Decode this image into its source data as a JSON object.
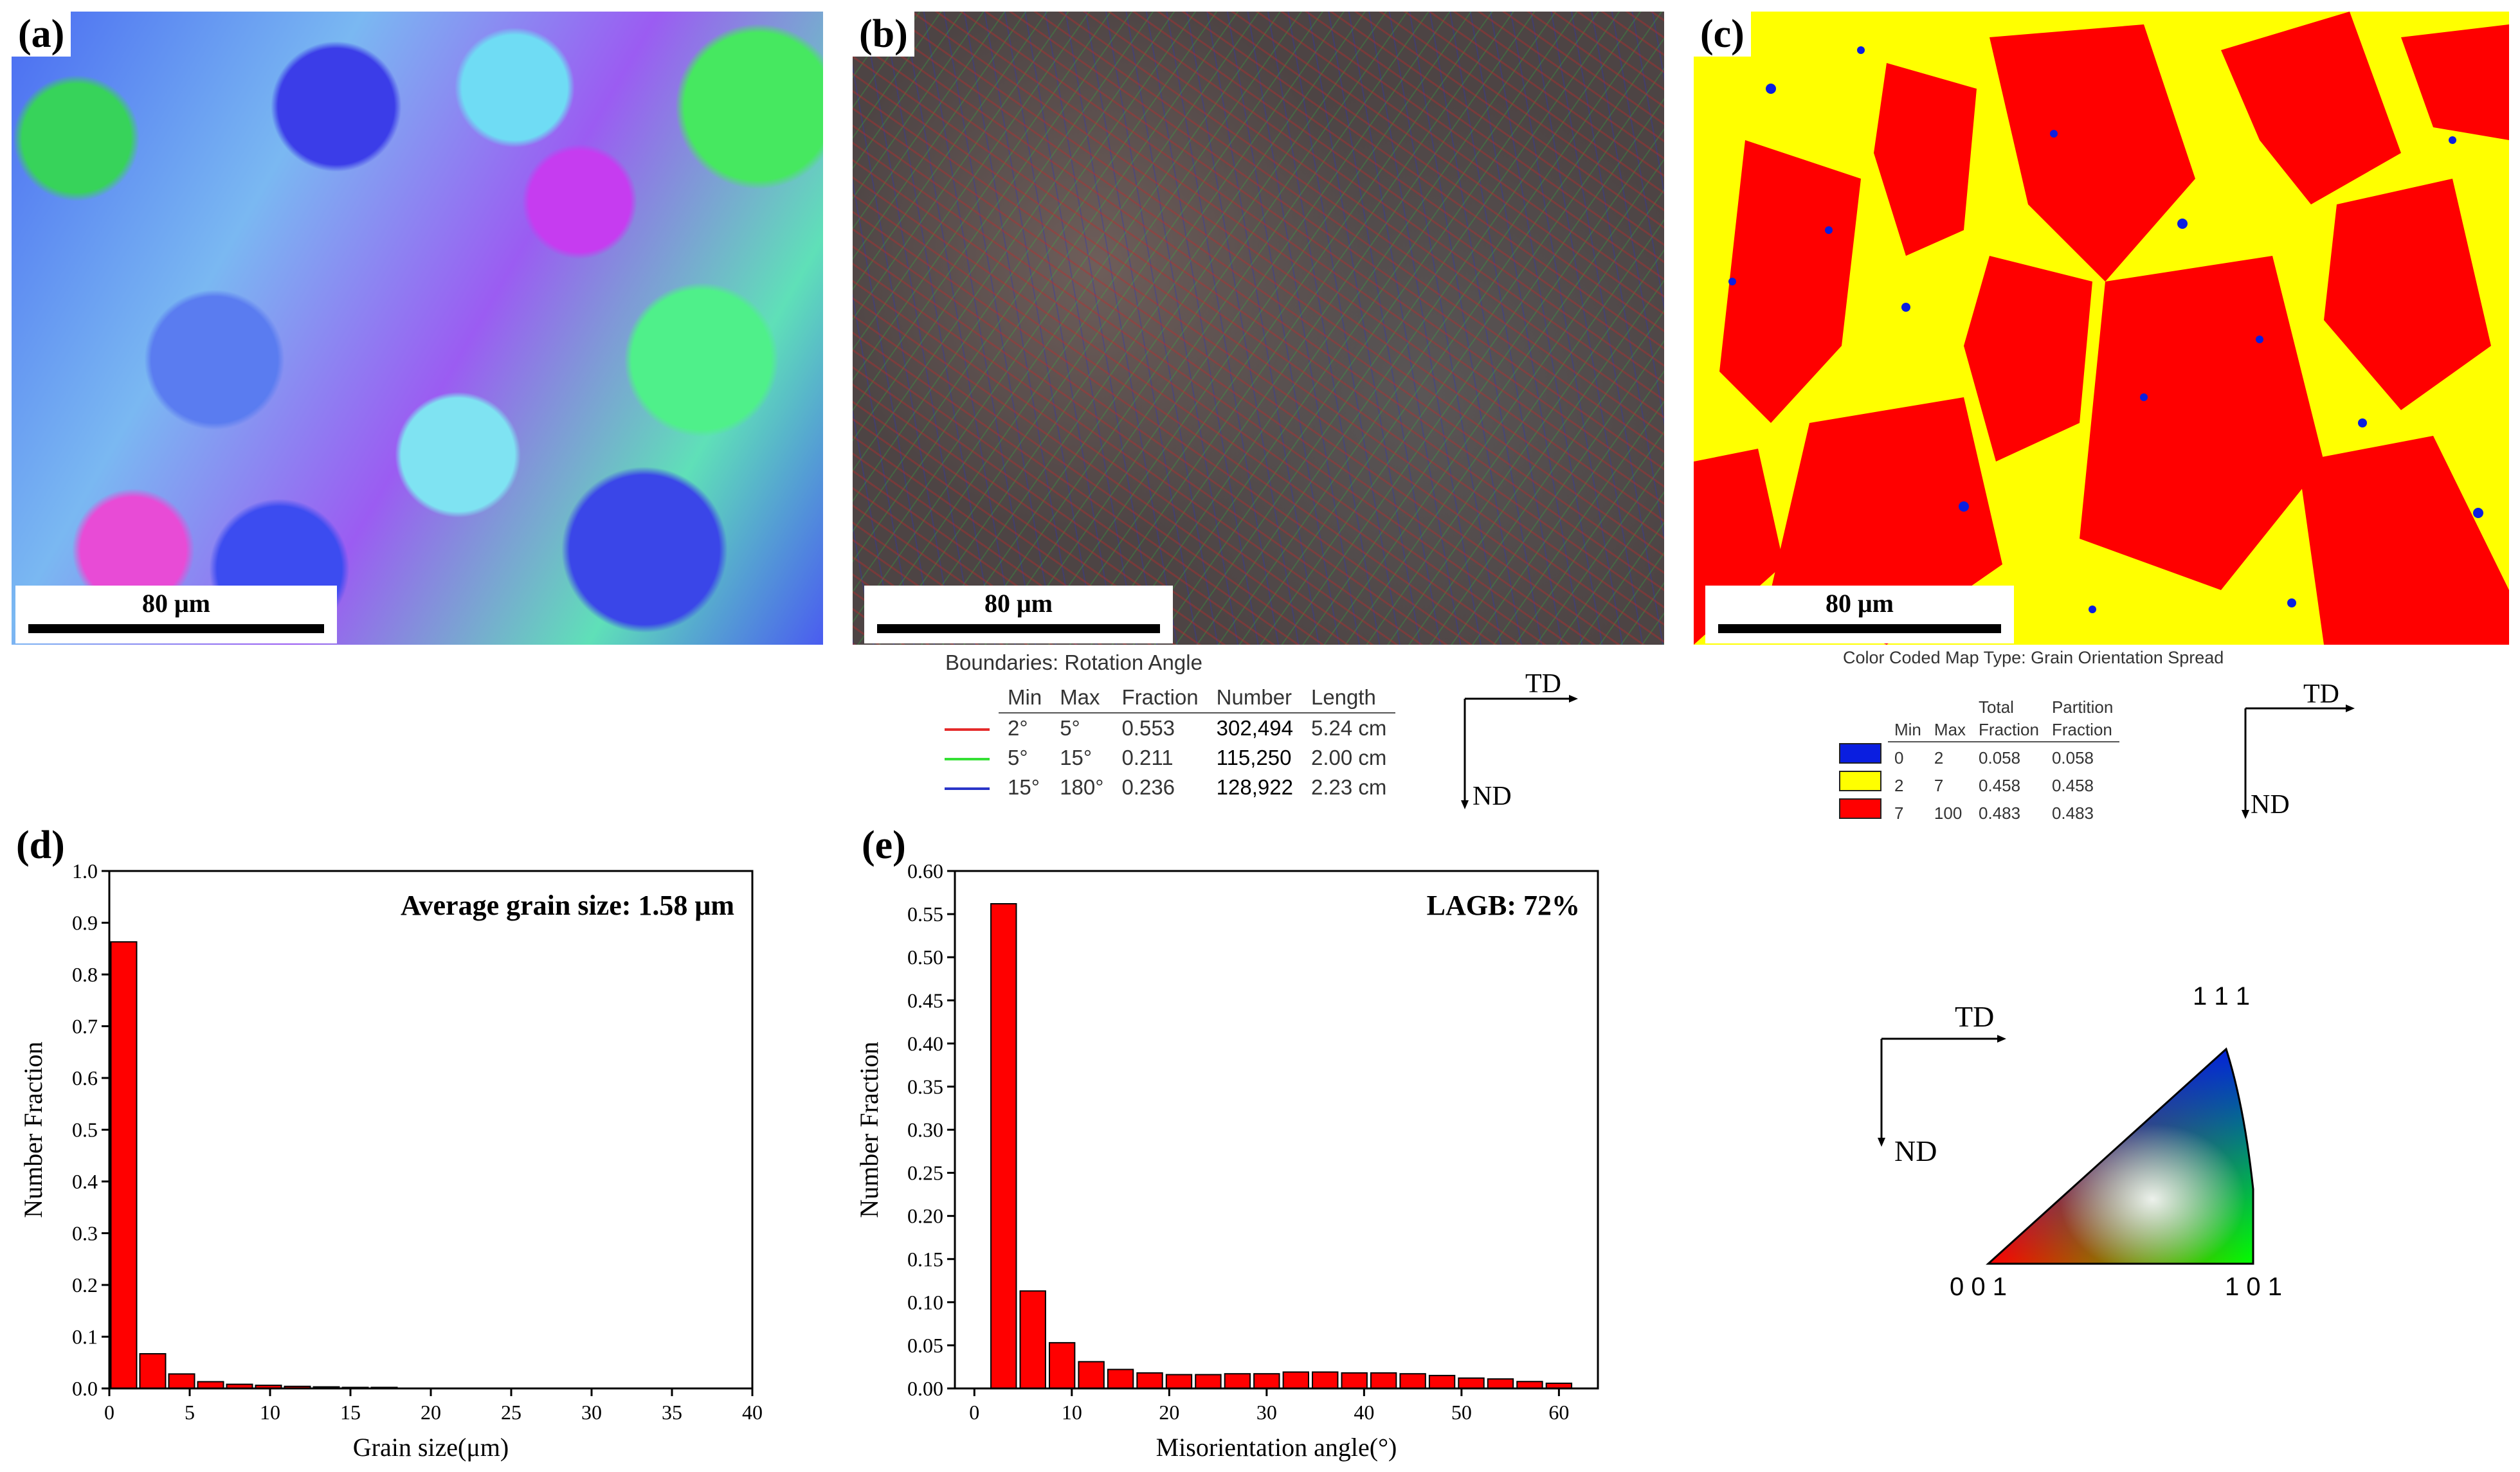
{
  "panels": {
    "a": {
      "label": "(a)",
      "scale": "80 μm"
    },
    "b": {
      "label": "(b)",
      "scale": "80 μm"
    },
    "c": {
      "label": "(c)",
      "scale": "80 μm"
    },
    "d": {
      "label": "(d)"
    },
    "e": {
      "label": "(e)"
    }
  },
  "boundaries": {
    "title": "Boundaries: Rotation Angle",
    "headers": [
      "Min",
      "Max",
      "Fraction",
      "Number",
      "Length"
    ],
    "rows": [
      {
        "color": "#e52b2b",
        "min": "2°",
        "max": "5°",
        "fraction": "0.553",
        "number": "302,494",
        "length": "5.24 cm"
      },
      {
        "color": "#35e035",
        "min": "5°",
        "max": "15°",
        "fraction": "0.211",
        "number": "115,250",
        "length": "2.00 cm"
      },
      {
        "color": "#2a35c8",
        "min": "15°",
        "max": "180°",
        "fraction": "0.236",
        "number": "128,922",
        "length": "2.23 cm"
      }
    ]
  },
  "gos": {
    "title": "Color Coded Map Type: Grain Orientation Spread",
    "headers": [
      "Min",
      "Max",
      "Total Fraction",
      "Partition Fraction"
    ],
    "header_top": [
      "Total",
      "Partition"
    ],
    "header_bottom": [
      "Fraction",
      "Fraction"
    ],
    "rows": [
      {
        "color": "#0a1ee0",
        "min": "0",
        "max": "2",
        "total": "0.058",
        "partition": "0.058"
      },
      {
        "color": "#ffff00",
        "min": "2",
        "max": "7",
        "total": "0.458",
        "partition": "0.458"
      },
      {
        "color": "#ff0000",
        "min": "7",
        "max": "100",
        "total": "0.483",
        "partition": "0.483"
      }
    ]
  },
  "axes_labels": {
    "td": "TD",
    "nd": "ND"
  },
  "ipf": {
    "top": "1 1 1",
    "left": "0 0 1",
    "right": "1 0 1"
  },
  "chart_data": [
    {
      "type": "bar",
      "title": "Average grain size: 1.58 μm",
      "xlabel": "Grain size(μm)",
      "ylabel": "Number Fraction",
      "xlim": [
        0,
        40
      ],
      "ylim": [
        0,
        1.0
      ],
      "xticks": [
        0,
        5,
        10,
        15,
        20,
        25,
        30,
        35,
        40
      ],
      "yticks": [
        0.0,
        0.1,
        0.2,
        0.3,
        0.4,
        0.5,
        0.6,
        0.7,
        0.8,
        0.9,
        1.0
      ],
      "ytick_labels": [
        "0.0",
        "0.1",
        "0.2",
        "0.3",
        "0.4",
        "0.5",
        "0.6",
        "0.7",
        "0.8",
        "0.9",
        "1.0"
      ],
      "bar_width": 1.6,
      "x": [
        0.9,
        2.7,
        4.5,
        6.3,
        8.1,
        9.9,
        11.7,
        13.5,
        15.3,
        17.1
      ],
      "values": [
        0.863,
        0.067,
        0.028,
        0.013,
        0.008,
        0.006,
        0.004,
        0.003,
        0.002,
        0.002
      ]
    },
    {
      "type": "bar",
      "title": "LAGB: 72%",
      "xlabel": "Misorientation angle(°)",
      "ylabel": "Number Fraction",
      "xlim": [
        -2,
        64
      ],
      "ylim": [
        0,
        0.6
      ],
      "xticks": [
        0,
        10,
        20,
        30,
        40,
        50,
        60
      ],
      "yticks": [
        0.0,
        0.05,
        0.1,
        0.15,
        0.2,
        0.25,
        0.3,
        0.35,
        0.4,
        0.45,
        0.5,
        0.55,
        0.6
      ],
      "ytick_labels": [
        "0.00",
        "0.05",
        "0.10",
        "0.15",
        "0.20",
        "0.25",
        "0.30",
        "0.35",
        "0.40",
        "0.45",
        "0.50",
        "0.55",
        "0.60"
      ],
      "bar_width": 2.6,
      "x": [
        3,
        6,
        9,
        12,
        15,
        18,
        21,
        24,
        27,
        30,
        33,
        36,
        39,
        42,
        45,
        48,
        51,
        54,
        57,
        60
      ],
      "values": [
        0.562,
        0.113,
        0.053,
        0.031,
        0.022,
        0.018,
        0.016,
        0.016,
        0.017,
        0.017,
        0.019,
        0.019,
        0.018,
        0.018,
        0.017,
        0.015,
        0.012,
        0.011,
        0.008,
        0.006
      ]
    }
  ]
}
